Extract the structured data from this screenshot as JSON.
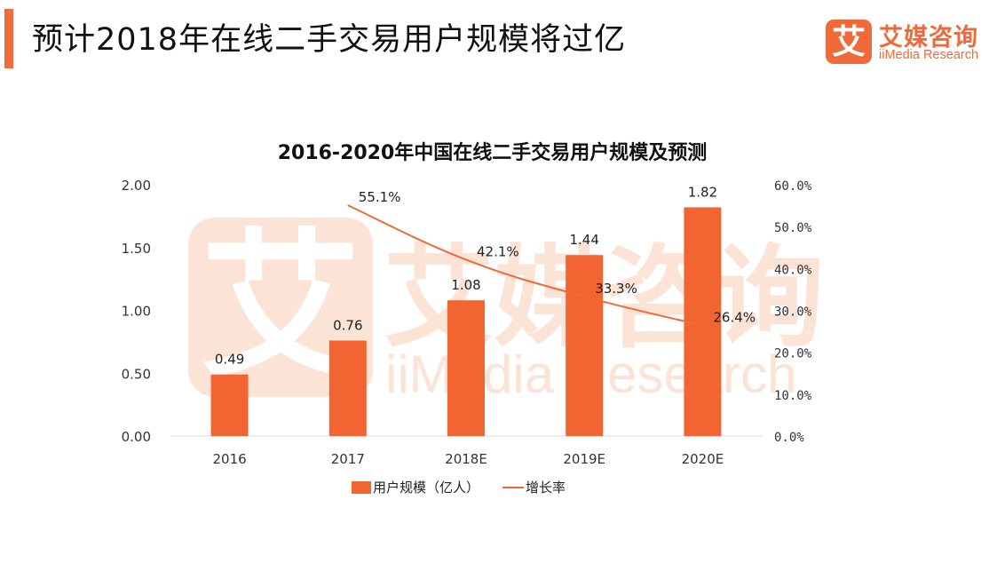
{
  "header": {
    "title": "预计2018年在线二手交易用户规模将过亿",
    "accent_color": "#f26b3a"
  },
  "logo": {
    "icon_glyph": "艾",
    "name_cn": "艾媒咨询",
    "name_en": "iiMedia Research",
    "color": "#ef6a3a"
  },
  "watermark": {
    "icon_glyph": "艾",
    "text_cn": "艾媒咨询",
    "text_en": "iiMedia Research",
    "color": "#fbe3d6"
  },
  "chart_data": {
    "type": "bar",
    "title": "2016-2020年中国在线二手交易用户规模及预测",
    "categories": [
      "2016",
      "2017",
      "2018E",
      "2019E",
      "2020E"
    ],
    "series": [
      {
        "name": "用户规模（亿人）",
        "kind": "bar",
        "axis": "left",
        "color": "#f26432",
        "values": [
          0.49,
          0.76,
          1.08,
          1.44,
          1.82
        ],
        "labels": [
          "0.49",
          "0.76",
          "1.08",
          "1.44",
          "1.82"
        ]
      },
      {
        "name": "增长率",
        "kind": "line",
        "axis": "right",
        "color": "#ef6a3a",
        "values": [
          null,
          55.1,
          42.1,
          33.3,
          26.4
        ],
        "labels": [
          "",
          "55.1%",
          "42.1%",
          "33.3%",
          "26.4%"
        ]
      }
    ],
    "y_left": {
      "range": [
        0,
        2.0
      ],
      "ticks": [
        0,
        0.5,
        1.0,
        1.5,
        2.0
      ],
      "tick_labels": [
        "0.00",
        "0.50",
        "1.00",
        "1.50",
        "2.00"
      ]
    },
    "y_right": {
      "range": [
        0,
        60
      ],
      "ticks": [
        0,
        10,
        20,
        30,
        40,
        50,
        60
      ],
      "tick_labels": [
        "0.0%",
        "10.0%",
        "20.0%",
        "30.0%",
        "40.0%",
        "50.0%",
        "60.0%"
      ]
    },
    "xlabel": "",
    "ylabel": "",
    "grid": false,
    "legend": "bottom-center"
  }
}
